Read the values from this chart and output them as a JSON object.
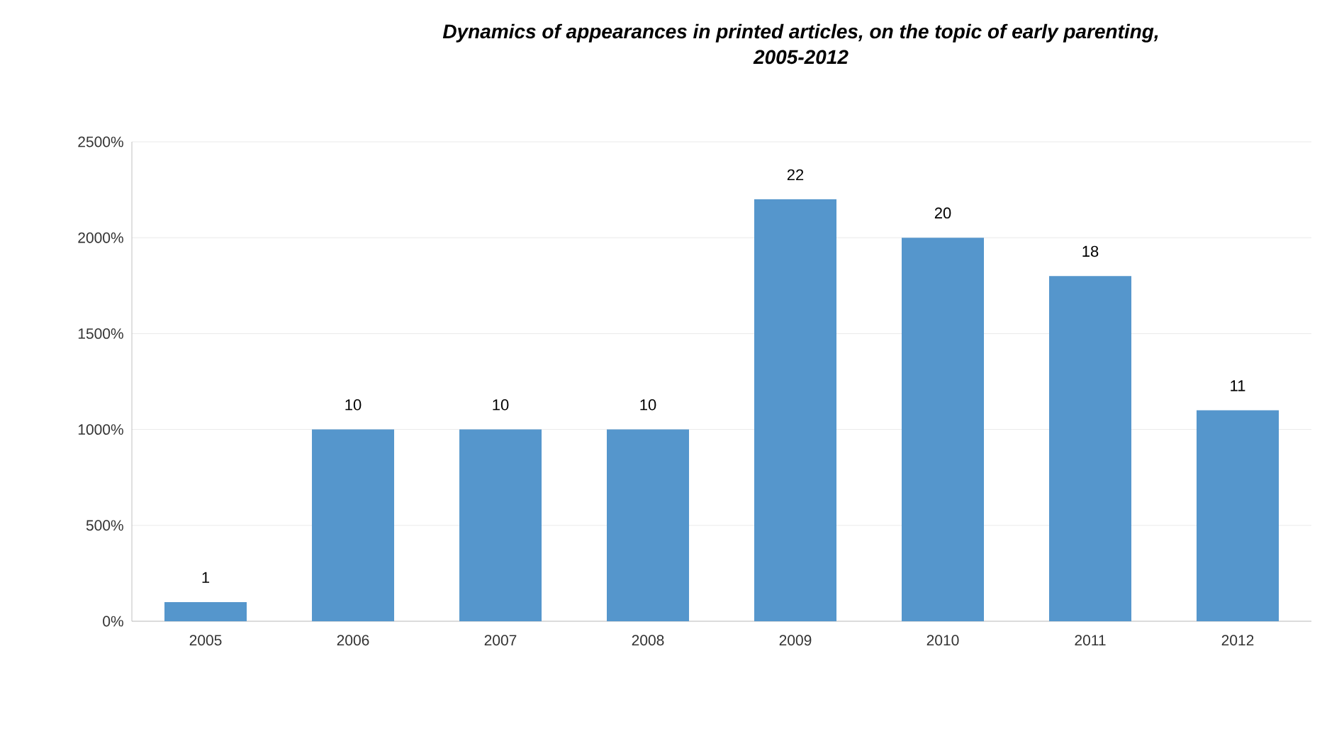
{
  "chart_data": {
    "type": "bar",
    "title": "Dynamics of appearances in printed articles, on the topic of early parenting, 2005-2012",
    "categories": [
      "2005",
      "2006",
      "2007",
      "2008",
      "2009",
      "2010",
      "2011",
      "2012"
    ],
    "values": [
      1,
      10,
      10,
      10,
      22,
      20,
      18,
      11
    ],
    "data_labels": true,
    "color": "#5596cc",
    "ylim": [
      0,
      25
    ],
    "yticks": [
      {
        "value": 0,
        "label": "0%"
      },
      {
        "value": 5,
        "label": "500%"
      },
      {
        "value": 10,
        "label": "1000%"
      },
      {
        "value": 15,
        "label": "1500%"
      },
      {
        "value": 20,
        "label": "2000%"
      },
      {
        "value": 25,
        "label": "2500%"
      }
    ],
    "grid": "y"
  }
}
